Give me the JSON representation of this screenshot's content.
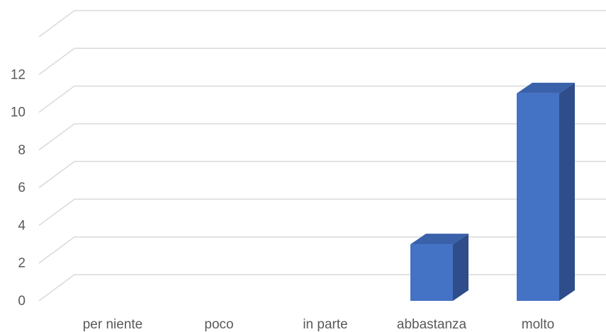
{
  "chart_data": {
    "type": "bar",
    "style": "3d-column",
    "categories": [
      "per niente",
      "poco",
      "in parte",
      "abbastanza",
      "molto"
    ],
    "values": [
      0,
      0,
      0,
      3,
      11
    ],
    "ylim": [
      0,
      14
    ],
    "yticks": [
      0,
      2,
      4,
      6,
      8,
      10,
      12
    ],
    "grid": true,
    "legend": "none",
    "colors": {
      "front": "#4472c4",
      "side": "#2e4d8a",
      "top": "#3a62ab",
      "grid": "#d9d9d9",
      "text": "#595959"
    }
  }
}
